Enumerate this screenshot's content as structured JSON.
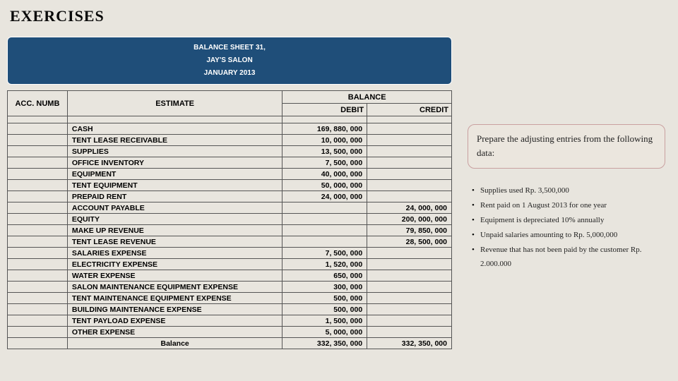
{
  "title": "EXERCISES",
  "header": {
    "line1": "BALANCE SHEET 31,",
    "line2": "JAY'S SALON",
    "line3": "JANUARY 2013"
  },
  "table": {
    "col_acc": "ACC. NUMB",
    "col_estimate": "ESTIMATE",
    "col_balance": "BALANCE",
    "col_debit": "DEBIT",
    "col_credit": "CREDIT",
    "rows": [
      {
        "est": "CASH",
        "debit": "169, 880, 000",
        "credit": ""
      },
      {
        "est": "TENT LEASE RECEIVABLE",
        "debit": "10, 000, 000",
        "credit": ""
      },
      {
        "est": "SUPPLIES",
        "debit": "13, 500, 000",
        "credit": ""
      },
      {
        "est": "OFFICE INVENTORY",
        "debit": "7, 500, 000",
        "credit": ""
      },
      {
        "est": "EQUIPMENT",
        "debit": "40, 000, 000",
        "credit": ""
      },
      {
        "est": "TENT EQUIPMENT",
        "debit": "50, 000, 000",
        "credit": ""
      },
      {
        "est": "PREPAID RENT",
        "debit": "24, 000, 000",
        "credit": ""
      },
      {
        "est": "ACCOUNT PAYABLE",
        "debit": "",
        "credit": "24, 000, 000"
      },
      {
        "est": "EQUITY",
        "debit": "",
        "credit": "200, 000, 000"
      },
      {
        "est": "MAKE UP REVENUE",
        "debit": "",
        "credit": "79, 850, 000"
      },
      {
        "est": "TENT LEASE REVENUE",
        "debit": "",
        "credit": "28, 500, 000"
      },
      {
        "est": "SALARIES EXPENSE",
        "debit": "7, 500, 000",
        "credit": ""
      },
      {
        "est": "ELECTRICITY EXPENSE",
        "debit": "1, 520, 000",
        "credit": ""
      },
      {
        "est": "WATER EXPENSE",
        "debit": "650, 000",
        "credit": ""
      },
      {
        "est": "SALON MAINTENANCE EQUIPMENT EXPENSE",
        "debit": "300, 000",
        "credit": ""
      },
      {
        "est": "TENT MAINTENANCE EQUIPMENT EXPENSE",
        "debit": "500, 000",
        "credit": ""
      },
      {
        "est": "BUILDING MAINTENANCE EXPENSE",
        "debit": "500, 000",
        "credit": ""
      },
      {
        "est": "TENT PAYLOAD EXPENSE",
        "debit": "1, 500, 000",
        "credit": ""
      },
      {
        "est": "OTHER EXPENSE",
        "debit": "5, 000, 000",
        "credit": ""
      }
    ],
    "balance_label": "Balance",
    "balance_debit": "332, 350, 000",
    "balance_credit": "332, 350, 000"
  },
  "callout": "Prepare the adjusting entries from the following data:",
  "bullets": [
    "Supplies used Rp. 3,500,000",
    "Rent paid on 1 August 2013 for one year",
    "Equipment is depreciated 10% annually",
    "Unpaid salaries amounting to Rp. 5,000,000",
    "Revenue that has not been paid by the customer Rp. 2.000.000"
  ]
}
